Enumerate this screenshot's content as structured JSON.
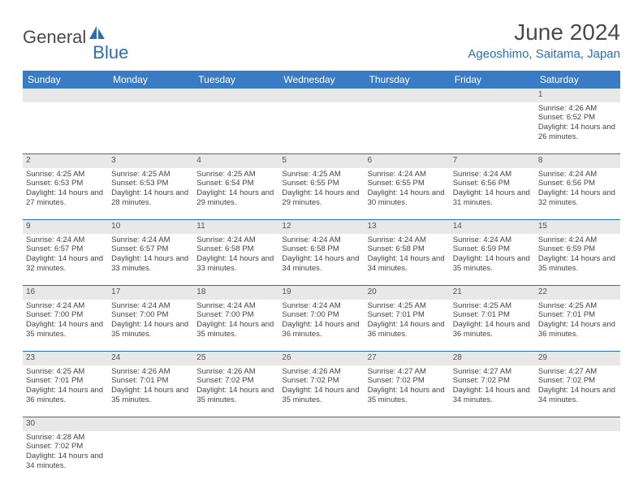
{
  "logo": {
    "text1": "General",
    "text2": "Blue"
  },
  "title": "June 2024",
  "location": "Ageoshimo, Saitama, Japan",
  "colors": {
    "header_bg": "#3a7cc4",
    "accent": "#2a6ebb",
    "daynum_bg": "#e8e8e8"
  },
  "dayHeaders": [
    "Sunday",
    "Monday",
    "Tuesday",
    "Wednesday",
    "Thursday",
    "Friday",
    "Saturday"
  ],
  "weeks": [
    [
      null,
      null,
      null,
      null,
      null,
      null,
      {
        "n": "1",
        "sr": "Sunrise: 4:26 AM",
        "ss": "Sunset: 6:52 PM",
        "dl": "Daylight: 14 hours and 26 minutes."
      }
    ],
    [
      {
        "n": "2",
        "sr": "Sunrise: 4:25 AM",
        "ss": "Sunset: 6:53 PM",
        "dl": "Daylight: 14 hours and 27 minutes."
      },
      {
        "n": "3",
        "sr": "Sunrise: 4:25 AM",
        "ss": "Sunset: 6:53 PM",
        "dl": "Daylight: 14 hours and 28 minutes."
      },
      {
        "n": "4",
        "sr": "Sunrise: 4:25 AM",
        "ss": "Sunset: 6:54 PM",
        "dl": "Daylight: 14 hours and 29 minutes."
      },
      {
        "n": "5",
        "sr": "Sunrise: 4:25 AM",
        "ss": "Sunset: 6:55 PM",
        "dl": "Daylight: 14 hours and 29 minutes."
      },
      {
        "n": "6",
        "sr": "Sunrise: 4:24 AM",
        "ss": "Sunset: 6:55 PM",
        "dl": "Daylight: 14 hours and 30 minutes."
      },
      {
        "n": "7",
        "sr": "Sunrise: 4:24 AM",
        "ss": "Sunset: 6:56 PM",
        "dl": "Daylight: 14 hours and 31 minutes."
      },
      {
        "n": "8",
        "sr": "Sunrise: 4:24 AM",
        "ss": "Sunset: 6:56 PM",
        "dl": "Daylight: 14 hours and 32 minutes."
      }
    ],
    [
      {
        "n": "9",
        "sr": "Sunrise: 4:24 AM",
        "ss": "Sunset: 6:57 PM",
        "dl": "Daylight: 14 hours and 32 minutes."
      },
      {
        "n": "10",
        "sr": "Sunrise: 4:24 AM",
        "ss": "Sunset: 6:57 PM",
        "dl": "Daylight: 14 hours and 33 minutes."
      },
      {
        "n": "11",
        "sr": "Sunrise: 4:24 AM",
        "ss": "Sunset: 6:58 PM",
        "dl": "Daylight: 14 hours and 33 minutes."
      },
      {
        "n": "12",
        "sr": "Sunrise: 4:24 AM",
        "ss": "Sunset: 6:58 PM",
        "dl": "Daylight: 14 hours and 34 minutes."
      },
      {
        "n": "13",
        "sr": "Sunrise: 4:24 AM",
        "ss": "Sunset: 6:58 PM",
        "dl": "Daylight: 14 hours and 34 minutes."
      },
      {
        "n": "14",
        "sr": "Sunrise: 4:24 AM",
        "ss": "Sunset: 6:59 PM",
        "dl": "Daylight: 14 hours and 35 minutes."
      },
      {
        "n": "15",
        "sr": "Sunrise: 4:24 AM",
        "ss": "Sunset: 6:59 PM",
        "dl": "Daylight: 14 hours and 35 minutes."
      }
    ],
    [
      {
        "n": "16",
        "sr": "Sunrise: 4:24 AM",
        "ss": "Sunset: 7:00 PM",
        "dl": "Daylight: 14 hours and 35 minutes."
      },
      {
        "n": "17",
        "sr": "Sunrise: 4:24 AM",
        "ss": "Sunset: 7:00 PM",
        "dl": "Daylight: 14 hours and 35 minutes."
      },
      {
        "n": "18",
        "sr": "Sunrise: 4:24 AM",
        "ss": "Sunset: 7:00 PM",
        "dl": "Daylight: 14 hours and 35 minutes."
      },
      {
        "n": "19",
        "sr": "Sunrise: 4:24 AM",
        "ss": "Sunset: 7:00 PM",
        "dl": "Daylight: 14 hours and 36 minutes."
      },
      {
        "n": "20",
        "sr": "Sunrise: 4:25 AM",
        "ss": "Sunset: 7:01 PM",
        "dl": "Daylight: 14 hours and 36 minutes."
      },
      {
        "n": "21",
        "sr": "Sunrise: 4:25 AM",
        "ss": "Sunset: 7:01 PM",
        "dl": "Daylight: 14 hours and 36 minutes."
      },
      {
        "n": "22",
        "sr": "Sunrise: 4:25 AM",
        "ss": "Sunset: 7:01 PM",
        "dl": "Daylight: 14 hours and 36 minutes."
      }
    ],
    [
      {
        "n": "23",
        "sr": "Sunrise: 4:25 AM",
        "ss": "Sunset: 7:01 PM",
        "dl": "Daylight: 14 hours and 36 minutes."
      },
      {
        "n": "24",
        "sr": "Sunrise: 4:26 AM",
        "ss": "Sunset: 7:01 PM",
        "dl": "Daylight: 14 hours and 35 minutes."
      },
      {
        "n": "25",
        "sr": "Sunrise: 4:26 AM",
        "ss": "Sunset: 7:02 PM",
        "dl": "Daylight: 14 hours and 35 minutes."
      },
      {
        "n": "26",
        "sr": "Sunrise: 4:26 AM",
        "ss": "Sunset: 7:02 PM",
        "dl": "Daylight: 14 hours and 35 minutes."
      },
      {
        "n": "27",
        "sr": "Sunrise: 4:27 AM",
        "ss": "Sunset: 7:02 PM",
        "dl": "Daylight: 14 hours and 35 minutes."
      },
      {
        "n": "28",
        "sr": "Sunrise: 4:27 AM",
        "ss": "Sunset: 7:02 PM",
        "dl": "Daylight: 14 hours and 34 minutes."
      },
      {
        "n": "29",
        "sr": "Sunrise: 4:27 AM",
        "ss": "Sunset: 7:02 PM",
        "dl": "Daylight: 14 hours and 34 minutes."
      }
    ],
    [
      {
        "n": "30",
        "sr": "Sunrise: 4:28 AM",
        "ss": "Sunset: 7:02 PM",
        "dl": "Daylight: 14 hours and 34 minutes."
      },
      null,
      null,
      null,
      null,
      null,
      null
    ]
  ]
}
